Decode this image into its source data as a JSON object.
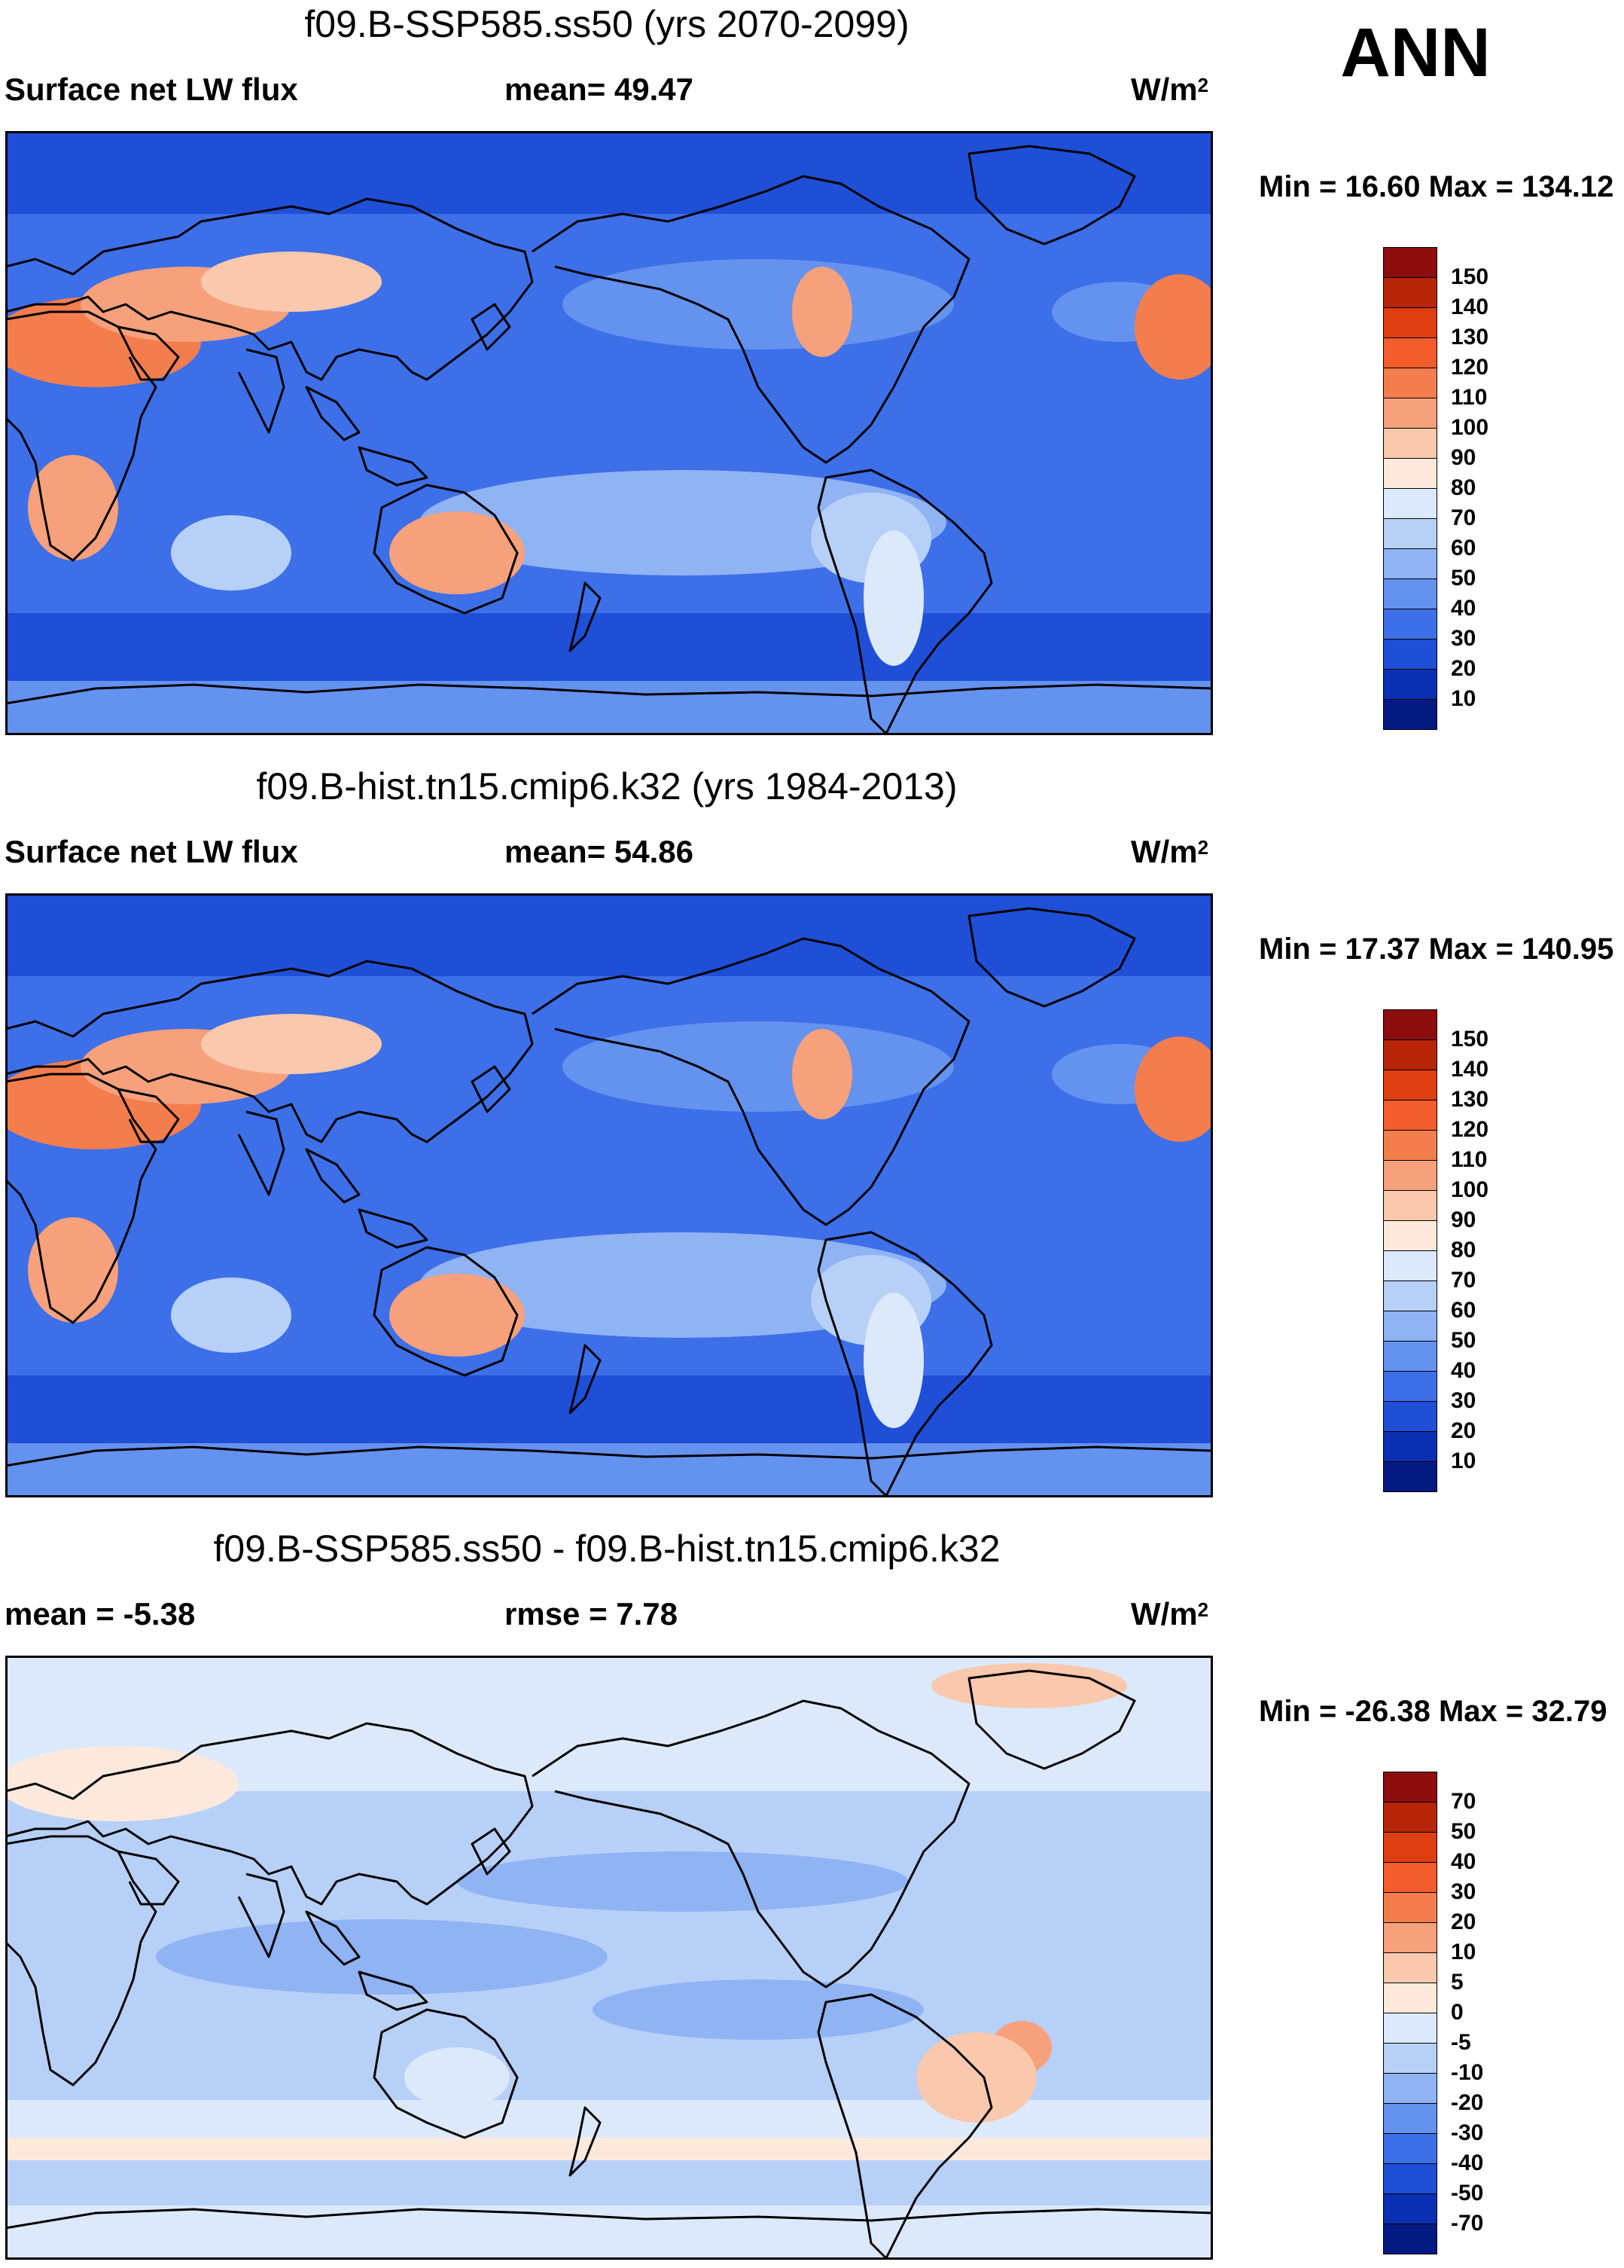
{
  "season_label": "ANN",
  "panels": [
    {
      "title": "f09.B-SSP585.ss50 (yrs 2070-2099)",
      "left_label": "Surface net LW flux",
      "mid_label": "mean=  49.47",
      "units_base": "W/m",
      "units_exp": "2",
      "minmax": "Min =  16.60 Max = 134.12",
      "colorbar_labels": [
        "150",
        "140",
        "130",
        "120",
        "110",
        "100",
        "90",
        "80",
        "70",
        "60",
        "50",
        "40",
        "30",
        "20",
        "10"
      ],
      "colorbar_colors": [
        "#8c0d0d",
        "#b82508",
        "#dd3f10",
        "#f35c2b",
        "#f47d4e",
        "#f6a17c",
        "#f9c8ad",
        "#fde9dc",
        "#dce9fb",
        "#b7d0f8",
        "#8fb3f3",
        "#6492ef",
        "#3d6fe8",
        "#1f4fd6",
        "#0b2fb3",
        "#041a83"
      ]
    },
    {
      "title": "f09.B-hist.tn15.cmip6.k32 (yrs 1984-2013)",
      "left_label": "Surface net LW flux",
      "mid_label": "mean=  54.86",
      "units_base": "W/m",
      "units_exp": "2",
      "minmax": "Min =  17.37 Max = 140.95",
      "colorbar_labels": [
        "150",
        "140",
        "130",
        "120",
        "110",
        "100",
        "90",
        "80",
        "70",
        "60",
        "50",
        "40",
        "30",
        "20",
        "10"
      ],
      "colorbar_colors": [
        "#8c0d0d",
        "#b82508",
        "#dd3f10",
        "#f35c2b",
        "#f47d4e",
        "#f6a17c",
        "#f9c8ad",
        "#fde9dc",
        "#dce9fb",
        "#b7d0f8",
        "#8fb3f3",
        "#6492ef",
        "#3d6fe8",
        "#1f4fd6",
        "#0b2fb3",
        "#041a83"
      ]
    },
    {
      "title": "f09.B-SSP585.ss50 - f09.B-hist.tn15.cmip6.k32",
      "left_label": "mean =  -5.38",
      "mid_label": "rmse =    7.78",
      "units_base": "W/m",
      "units_exp": "2",
      "minmax": "Min = -26.38 Max =  32.79",
      "colorbar_labels": [
        "70",
        "50",
        "40",
        "30",
        "20",
        "10",
        "5",
        "0",
        "-5",
        "-10",
        "-20",
        "-30",
        "-40",
        "-50",
        "-70"
      ],
      "colorbar_colors": [
        "#8c0d0d",
        "#b82508",
        "#dd3f10",
        "#f35c2b",
        "#f47d4e",
        "#f6a17c",
        "#f9c8ad",
        "#fde9dc",
        "#dce9fb",
        "#b7d0f8",
        "#8fb3f3",
        "#6492ef",
        "#3d6fe8",
        "#1f4fd6",
        "#0b2fb3",
        "#041a83"
      ]
    }
  ],
  "map_colors": {
    "deep": "#1f4fd6",
    "mid": "#3d6fe8",
    "light": "#6492ef",
    "pale": "#8fb3f3",
    "veryPale": "#b7d0f8",
    "whiteBlue": "#dce9fb",
    "cream": "#fde9dc",
    "peach": "#f9c8ad",
    "salmon": "#f6a17c",
    "orange": "#f47d4e",
    "red": "#dd3f10",
    "coast": "#000000"
  }
}
